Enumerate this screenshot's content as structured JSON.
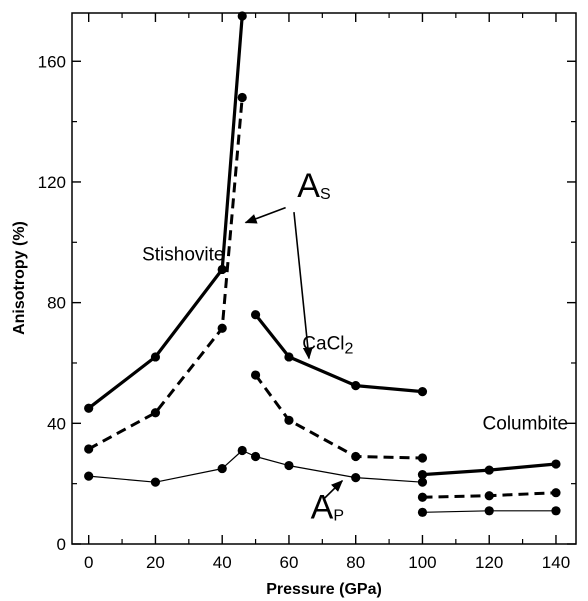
{
  "chart_data": {
    "type": "line",
    "title": "",
    "xlabel": "Pressure (GPa)",
    "ylabel": "Anisotropy (%)",
    "xlim": [
      -5,
      146
    ],
    "ylim": [
      0,
      176
    ],
    "xticks": [
      0,
      20,
      40,
      60,
      80,
      100,
      120,
      140
    ],
    "yticks": [
      0,
      40,
      80,
      120,
      160
    ],
    "grid": false,
    "legend": "none",
    "colors": {
      "line": "#000000",
      "marker": "#000000"
    },
    "series": [
      {
        "style": "thick-solid",
        "segments": [
          [
            [
              0,
              45
            ],
            [
              20,
              62
            ],
            [
              40,
              91
            ],
            [
              46,
              175
            ]
          ],
          [
            [
              50,
              76
            ],
            [
              60,
              62
            ],
            [
              80,
              52.5
            ],
            [
              100,
              50.5
            ]
          ],
          [
            [
              100,
              23
            ],
            [
              120,
              24.5
            ],
            [
              140,
              26.5
            ]
          ]
        ]
      },
      {
        "style": "dashed",
        "segments": [
          [
            [
              0,
              31.5
            ],
            [
              20,
              43.5
            ],
            [
              40,
              71.5
            ],
            [
              46,
              148
            ]
          ],
          [
            [
              50,
              56
            ],
            [
              60,
              41
            ],
            [
              80,
              29
            ],
            [
              100,
              28.5
            ]
          ],
          [
            [
              100,
              15.5
            ],
            [
              120,
              16
            ],
            [
              140,
              17
            ]
          ]
        ]
      },
      {
        "style": "thin-solid",
        "segments": [
          [
            [
              0,
              22.5
            ],
            [
              20,
              20.5
            ],
            [
              40,
              25
            ],
            [
              46,
              31
            ],
            [
              50,
              29
            ],
            [
              60,
              26
            ],
            [
              80,
              22
            ],
            [
              100,
              20.5
            ]
          ],
          [
            [
              100,
              10.5
            ],
            [
              120,
              11
            ],
            [
              140,
              11
            ]
          ]
        ]
      }
    ],
    "annotations": [
      {
        "text": "Stishovite",
        "x": 16,
        "y": 94
      },
      {
        "text": "CaCl",
        "sub": "2",
        "x": 64,
        "y": 64.5
      },
      {
        "text": "Columbite",
        "x": 118,
        "y": 38
      },
      {
        "text": "A",
        "sub": "S",
        "x": 62.5,
        "y": 115,
        "big": true
      },
      {
        "text": "A",
        "sub": "P",
        "x": 66.5,
        "y": 8.5,
        "big": true
      }
    ],
    "arrows": [
      {
        "from": [
          59,
          111.5
        ],
        "to": [
          47,
          106.5
        ]
      },
      {
        "from": [
          61.5,
          110
        ],
        "to": [
          66,
          61.5
        ]
      },
      {
        "from": [
          70.5,
          15
        ],
        "to": [
          76,
          21
        ]
      }
    ]
  }
}
